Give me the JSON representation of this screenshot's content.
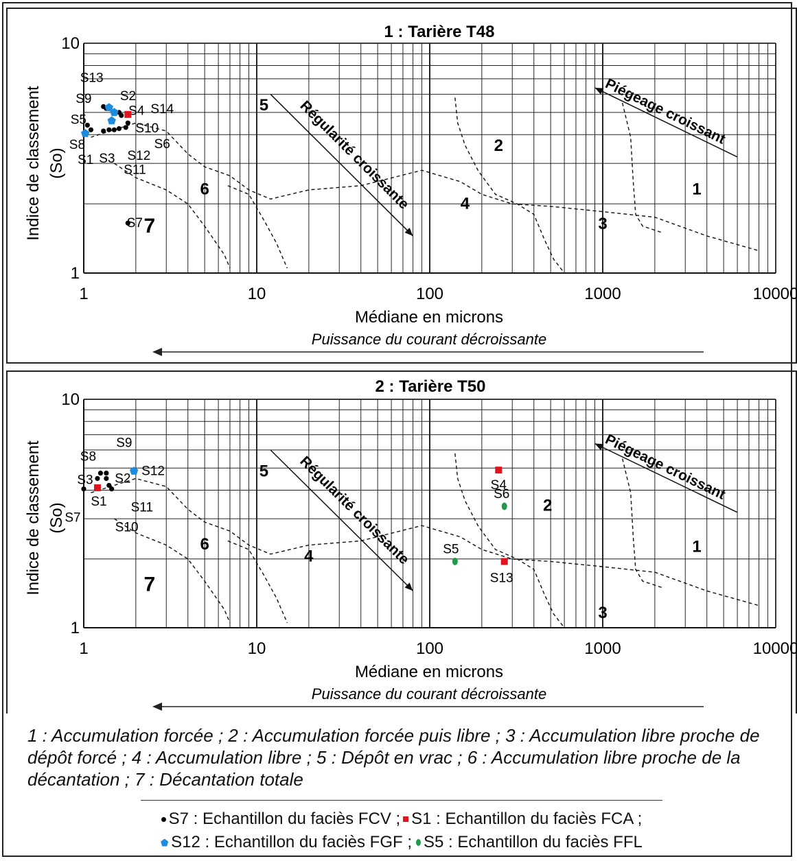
{
  "charts": [
    {
      "title": "1 : Tarière T48",
      "xlabel": "Médiane en microns",
      "ylabel_line1": "Indice de classement",
      "ylabel_line2": "(So)",
      "arrow_label": "Puissance du courant décroissante"
    },
    {
      "title": "2 : Tarière T50",
      "xlabel": "Médiane en microns",
      "ylabel_line1": "Indice de classement",
      "ylabel_line2": "(So)",
      "arrow_label": "Puissance du courant décroissante"
    }
  ],
  "chart_data": [
    {
      "type": "scatter",
      "title": "1 : Tarière T48",
      "xlabel": "Médiane en microns",
      "ylabel": "Indice de classement (So)",
      "x_scale": "log",
      "y_scale": "log",
      "xlim": [
        1,
        10000
      ],
      "ylim": [
        1,
        10
      ],
      "x_ticks": [
        "1",
        "10",
        "100",
        "1000",
        "10000"
      ],
      "y_ticks": [
        "1",
        "10"
      ],
      "grid": true,
      "zones": [
        {
          "label": "1",
          "x": 3500,
          "y": 2.2
        },
        {
          "label": "2",
          "x": 250,
          "y": 3.4
        },
        {
          "label": "3",
          "x": 1000,
          "y": 1.55
        },
        {
          "label": "4",
          "x": 160,
          "y": 1.9
        },
        {
          "label": "5",
          "x": 11,
          "y": 5.1
        },
        {
          "label": "6",
          "x": 5,
          "y": 2.2
        },
        {
          "label": "7",
          "x": 2.4,
          "y": 1.5
        }
      ],
      "trend_labels": {
        "regularite": "Régularité croissante",
        "piegeage": "Piégeage croissant"
      },
      "series": [
        {
          "name": "FCV",
          "marker": "dot",
          "color": "#000000",
          "points": [
            {
              "label": "S13",
              "x": 1.3,
              "y": 5.3
            },
            {
              "label": "S9",
              "x": 1.35,
              "y": 5.2
            },
            {
              "label": "S2",
              "x": 1.6,
              "y": 5.0
            },
            {
              "label": "S4",
              "x": 1.65,
              "y": 4.85
            },
            {
              "label": "S5",
              "x": 1.05,
              "y": 4.4
            },
            {
              "label": "S8",
              "x": 1.1,
              "y": 4.2
            },
            {
              "label": "S1",
              "x": 1.3,
              "y": 4.15
            },
            {
              "label": "S3",
              "x": 1.4,
              "y": 4.2
            },
            {
              "label": "S12",
              "x": 1.5,
              "y": 4.2
            },
            {
              "label": "S11",
              "x": 1.6,
              "y": 4.25
            },
            {
              "label": "S6",
              "x": 1.75,
              "y": 4.3
            },
            {
              "label": "S10",
              "x": 1.8,
              "y": 4.5
            },
            {
              "label": "S7",
              "x": 1.8,
              "y": 1.65
            }
          ]
        },
        {
          "name": "FCA",
          "marker": "square",
          "color": "#e0141e",
          "points": [
            {
              "label": "S14",
              "x": 1.8,
              "y": 4.9
            }
          ]
        },
        {
          "name": "FGF",
          "marker": "pentagon",
          "color": "#1d8be0",
          "points": [
            {
              "label": "",
              "x": 1.4,
              "y": 5.25
            },
            {
              "label": "",
              "x": 1.5,
              "y": 5.0
            },
            {
              "label": "",
              "x": 1.45,
              "y": 4.6
            },
            {
              "label": "",
              "x": 1.02,
              "y": 4.05
            }
          ]
        }
      ]
    },
    {
      "type": "scatter",
      "title": "2 : Tarière T50",
      "xlabel": "Médiane en microns",
      "ylabel": "Indice de classement (So)",
      "x_scale": "log",
      "y_scale": "log",
      "xlim": [
        1,
        10000
      ],
      "ylim": [
        1,
        10
      ],
      "x_ticks": [
        "1",
        "10",
        "100",
        "1000",
        "10000"
      ],
      "y_ticks": [
        "1",
        "10"
      ],
      "grid": true,
      "zones": [
        {
          "label": "1",
          "x": 3500,
          "y": 2.15
        },
        {
          "label": "2",
          "x": 480,
          "y": 3.25
        },
        {
          "label": "3",
          "x": 1000,
          "y": 1.1
        },
        {
          "label": "4",
          "x": 20,
          "y": 1.95
        },
        {
          "label": "5",
          "x": 11,
          "y": 4.6
        },
        {
          "label": "6",
          "x": 5,
          "y": 2.2
        },
        {
          "label": "7",
          "x": 2.4,
          "y": 1.45
        }
      ],
      "trend_labels": {
        "regularite": "Régularité croissante",
        "piegeage": "Piégeage croissant"
      },
      "series": [
        {
          "name": "FCV",
          "marker": "dot",
          "color": "#000000",
          "points": [
            {
              "label": "S9",
              "x": 1.35,
              "y": 4.75
            },
            {
              "label": "S8",
              "x": 1.25,
              "y": 4.75
            },
            {
              "label": "S3",
              "x": 1.2,
              "y": 4.5
            },
            {
              "label": "S2",
              "x": 1.35,
              "y": 4.5
            },
            {
              "label": "S11",
              "x": 1.4,
              "y": 4.2
            },
            {
              "label": "S10",
              "x": 1.45,
              "y": 4.05
            },
            {
              "label": "S7",
              "x": 1.0,
              "y": 4.05
            }
          ]
        },
        {
          "name": "FCA",
          "marker": "square",
          "color": "#e0141e",
          "points": [
            {
              "label": "S1",
              "x": 1.2,
              "y": 4.1
            },
            {
              "label": "S4",
              "x": 250,
              "y": 4.9
            },
            {
              "label": "S13",
              "x": 270,
              "y": 1.95
            }
          ]
        },
        {
          "name": "FGF",
          "marker": "pentagon",
          "color": "#1d8be0",
          "points": [
            {
              "label": "S12",
              "x": 1.95,
              "y": 4.85
            }
          ]
        },
        {
          "name": "FFL",
          "marker": "ellipse",
          "color": "#1f9a48",
          "points": [
            {
              "label": "S6",
              "x": 270,
              "y": 3.4
            },
            {
              "label": "S5",
              "x": 140,
              "y": 1.95
            }
          ]
        }
      ]
    }
  ],
  "caption": "1 : Accumulation forcée ; 2 : Accumulation forcée puis libre ; 3 : Accumulation libre proche de dépôt forcé ; 4 : Accumulation libre ; 5 : Dépôt en vrac ; 6 : Accumulation libre proche de la décantation ; 7 : Décantation totale",
  "legend": {
    "fcv": "S7 : Echantillon du faciès FCV ;",
    "fca": "S1 : Echantillon du faciès FCA ;",
    "fgf": "S12 : Echantillon du faciès FGF ;",
    "ffl": "S5 : Echantillon du faciès FFL"
  },
  "colors": {
    "fcv": "#000000",
    "fca": "#e0141e",
    "fgf": "#1d8be0",
    "ffl": "#1f9a48"
  }
}
